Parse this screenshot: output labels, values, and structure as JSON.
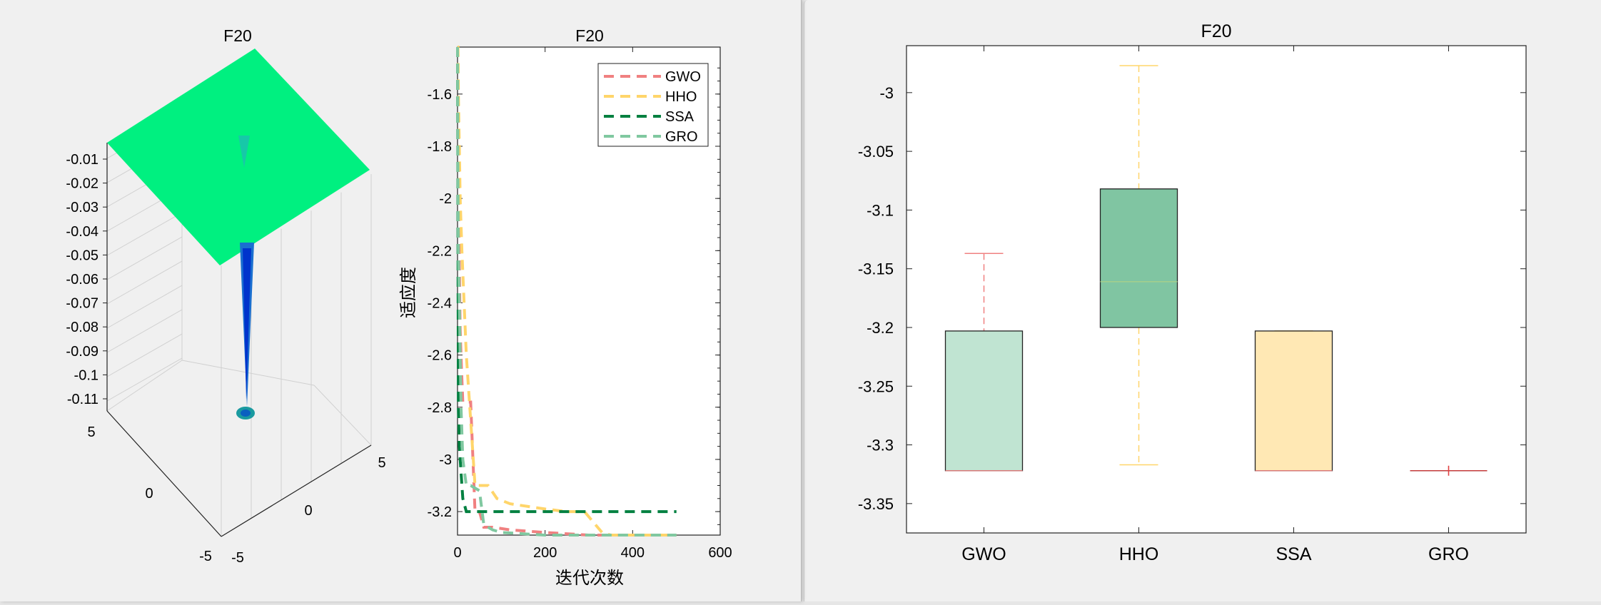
{
  "surface_panel": {
    "title": "F20",
    "z_ticks": [
      "-0.01",
      "-0.02",
      "-0.03",
      "-0.04",
      "-0.05",
      "-0.06",
      "-0.07",
      "-0.08",
      "-0.09",
      "-0.1",
      "-0.11"
    ],
    "x_ticks": [
      "5",
      "0",
      "-5"
    ],
    "y_ticks": [
      "-5",
      "0",
      "5"
    ],
    "surface_color": "#00f080"
  },
  "chart_data": [
    {
      "type": "line",
      "title": "F20",
      "xlabel": "迭代次数",
      "ylabel": "适应度",
      "xlim": [
        0,
        600
      ],
      "ylim": [
        -3.29,
        -1.42
      ],
      "x_ticks": [
        0,
        200,
        400,
        600
      ],
      "y_ticks": [
        -1.6,
        -1.8,
        -2,
        -2.2,
        -2.4,
        -2.6,
        -2.8,
        -3,
        -3.2
      ],
      "legend": "top-right",
      "series": [
        {
          "name": "GWO",
          "color": "#f08080",
          "x": [
            0,
            3,
            6,
            9,
            12,
            20,
            30,
            40,
            50,
            60,
            80,
            120,
            200,
            300,
            400,
            500
          ],
          "y": [
            -1.42,
            -2.1,
            -2.5,
            -2.65,
            -2.78,
            -2.78,
            -2.78,
            -3.2,
            -3.2,
            -3.26,
            -3.26,
            -3.27,
            -3.28,
            -3.29,
            -3.29,
            -3.29
          ]
        },
        {
          "name": "HHO",
          "color": "#ffd56a",
          "x": [
            0,
            1,
            2,
            3,
            4,
            5,
            6,
            8,
            10,
            15,
            20,
            40,
            70,
            90,
            120,
            200,
            250,
            290,
            310,
            330,
            350,
            400,
            500
          ],
          "y": [
            -1.42,
            -1.42,
            -1.6,
            -1.7,
            -1.8,
            -1.9,
            -2.0,
            -2.1,
            -2.2,
            -2.4,
            -2.6,
            -3.1,
            -3.1,
            -3.15,
            -3.17,
            -3.19,
            -3.2,
            -3.2,
            -3.24,
            -3.28,
            -3.29,
            -3.29,
            -3.29
          ]
        },
        {
          "name": "SSA",
          "color": "#008040",
          "x": [
            0,
            2,
            4,
            8,
            12,
            20,
            30,
            50,
            100,
            200,
            300,
            500
          ],
          "y": [
            -1.42,
            -2.8,
            -2.95,
            -3.05,
            -3.15,
            -3.2,
            -3.2,
            -3.2,
            -3.2,
            -3.2,
            -3.2,
            -3.2
          ]
        },
        {
          "name": "GRO",
          "color": "#80c8a0",
          "x": [
            0,
            1,
            2,
            4,
            6,
            8,
            12,
            20,
            30,
            50,
            60,
            80,
            100,
            200,
            300,
            500
          ],
          "y": [
            -1.42,
            -1.9,
            -2.2,
            -2.4,
            -2.6,
            -2.8,
            -3.0,
            -3.1,
            -3.1,
            -3.12,
            -3.25,
            -3.27,
            -3.28,
            -3.29,
            -3.29,
            -3.29
          ]
        }
      ]
    },
    {
      "type": "box",
      "title": "F20",
      "categories": [
        "GWO",
        "HHO",
        "SSA",
        "GRO"
      ],
      "ylim": [
        -3.375,
        -2.96
      ],
      "y_ticks": [
        -3,
        -3.05,
        -3.1,
        -3.15,
        -3.2,
        -3.25,
        -3.3,
        -3.35
      ],
      "boxes": [
        {
          "name": "GWO",
          "min": -3.322,
          "q1": -3.322,
          "median": -3.322,
          "q3": -3.203,
          "max": -3.137,
          "fill": "#c0e4d2",
          "whisker_color": "#f08080",
          "median_color": "#f08080"
        },
        {
          "name": "HHO",
          "min": -3.317,
          "q1": -3.2,
          "median": -3.161,
          "q3": -3.082,
          "max": -2.977,
          "fill": "#80c5a2",
          "whisker_color": "#ffd56a",
          "median_color": "#aad08a"
        },
        {
          "name": "SSA",
          "min": -3.322,
          "q1": -3.322,
          "median": -3.322,
          "q3": -3.203,
          "max": -3.203,
          "fill": "#ffe8b4",
          "whisker_color": "#ffd56a",
          "median_color": "#f08080"
        },
        {
          "name": "GRO",
          "min": -3.322,
          "q1": -3.322,
          "median": -3.322,
          "q3": -3.322,
          "max": -3.322,
          "fill": "#c0e4d2",
          "whisker_color": "#f08080",
          "median_color": "#e04040"
        }
      ]
    }
  ]
}
